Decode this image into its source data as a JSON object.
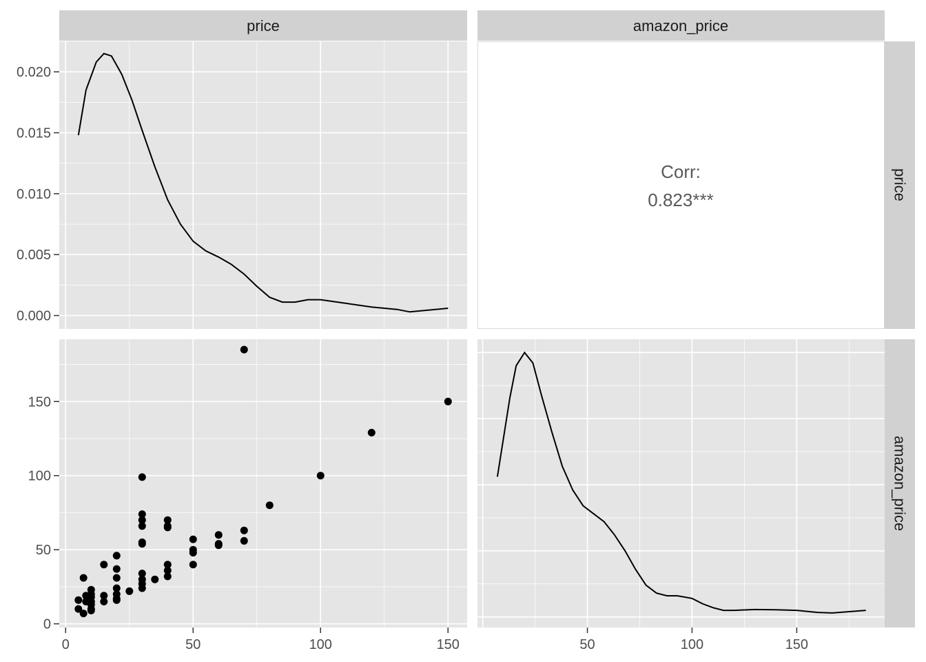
{
  "chart_data": {
    "type": "scatter-matrix",
    "variables": [
      "price",
      "amazon_price"
    ],
    "panel_background": "#e5e5e5",
    "strip_background": "#d1d1d1",
    "grid_color": "#ffffff",
    "grid": true,
    "axes": {
      "price": {
        "range": [
          -2.5,
          157.5
        ],
        "ticks": [
          0,
          50,
          100,
          150
        ],
        "tick_labels": [
          "0",
          "50",
          "100",
          "150"
        ]
      },
      "amazon_price": {
        "range": [
          -2.5,
          192
        ],
        "ticks": [
          50,
          100,
          150
        ],
        "tick_labels": [
          "50",
          "100",
          "150"
        ],
        "row_ticks": [
          0,
          50,
          100,
          150
        ],
        "row_tick_labels": [
          "0",
          "50",
          "100",
          "150"
        ]
      },
      "density_price": {
        "range": [
          -0.0011,
          0.0225
        ],
        "ticks": [
          0.0,
          0.005,
          0.01,
          0.015,
          0.02
        ],
        "tick_labels": [
          "0.000",
          "0.005",
          "0.010",
          "0.015",
          "0.020"
        ]
      }
    },
    "panels": [
      {
        "id": "price-density",
        "type": "line",
        "row": "price",
        "col": "price",
        "x": [
          5,
          8,
          12,
          15,
          18,
          22,
          26,
          30,
          35,
          40,
          45,
          50,
          55,
          60,
          65,
          70,
          75,
          80,
          85,
          90,
          95,
          100,
          110,
          120,
          130,
          135,
          140,
          150
        ],
        "y": [
          0.0148,
          0.0185,
          0.0208,
          0.0215,
          0.0213,
          0.0198,
          0.0177,
          0.0152,
          0.0122,
          0.0095,
          0.0075,
          0.0061,
          0.0053,
          0.0048,
          0.0042,
          0.0034,
          0.0024,
          0.0015,
          0.0011,
          0.0011,
          0.0013,
          0.0013,
          0.001,
          0.0007,
          0.0005,
          0.0003,
          0.0004,
          0.0006
        ]
      },
      {
        "id": "correlation",
        "type": "text",
        "row": "price",
        "col": "amazon_price",
        "label": "Corr:",
        "value": "0.823***"
      },
      {
        "id": "scatter",
        "type": "scatter",
        "row": "amazon_price",
        "col": "price",
        "points": [
          [
            5,
            16
          ],
          [
            5,
            10
          ],
          [
            7,
            7
          ],
          [
            7,
            31
          ],
          [
            8,
            19
          ],
          [
            8,
            15
          ],
          [
            10,
            23
          ],
          [
            10,
            20
          ],
          [
            10,
            18
          ],
          [
            10,
            15
          ],
          [
            10,
            13
          ],
          [
            10,
            9
          ],
          [
            10,
            10
          ],
          [
            15,
            40
          ],
          [
            15,
            19
          ],
          [
            15,
            15
          ],
          [
            20,
            46
          ],
          [
            20,
            37
          ],
          [
            20,
            31
          ],
          [
            20,
            24
          ],
          [
            20,
            20
          ],
          [
            20,
            17
          ],
          [
            20,
            16
          ],
          [
            25,
            22
          ],
          [
            30,
            99
          ],
          [
            30,
            74
          ],
          [
            30,
            70
          ],
          [
            30,
            66
          ],
          [
            30,
            55
          ],
          [
            30,
            54
          ],
          [
            30,
            34
          ],
          [
            30,
            30
          ],
          [
            30,
            27
          ],
          [
            30,
            24
          ],
          [
            35,
            30
          ],
          [
            40,
            70
          ],
          [
            40,
            66
          ],
          [
            40,
            65
          ],
          [
            40,
            40
          ],
          [
            40,
            36
          ],
          [
            40,
            32
          ],
          [
            50,
            57
          ],
          [
            50,
            50
          ],
          [
            50,
            48
          ],
          [
            50,
            40
          ],
          [
            60,
            60
          ],
          [
            60,
            54
          ],
          [
            60,
            53
          ],
          [
            70,
            185
          ],
          [
            70,
            63
          ],
          [
            70,
            56
          ],
          [
            80,
            80
          ],
          [
            100,
            100
          ],
          [
            120,
            129
          ],
          [
            150,
            150
          ]
        ]
      },
      {
        "id": "amazon-density",
        "type": "line",
        "row": "amazon_price",
        "col": "amazon_price",
        "x": [
          7,
          10,
          13,
          16,
          20,
          24,
          28,
          33,
          38,
          43,
          48,
          53,
          58,
          63,
          68,
          73,
          78,
          83,
          88,
          93,
          100,
          105,
          110,
          115,
          120,
          130,
          140,
          150,
          160,
          167,
          175,
          183
        ],
        "y_rel": [
          0.53,
          0.68,
          0.83,
          0.95,
          1.0,
          0.96,
          0.84,
          0.7,
          0.57,
          0.48,
          0.42,
          0.39,
          0.36,
          0.31,
          0.25,
          0.18,
          0.12,
          0.09,
          0.08,
          0.08,
          0.07,
          0.05,
          0.035,
          0.025,
          0.025,
          0.028,
          0.027,
          0.025,
          0.017,
          0.015,
          0.02,
          0.025
        ]
      }
    ]
  }
}
